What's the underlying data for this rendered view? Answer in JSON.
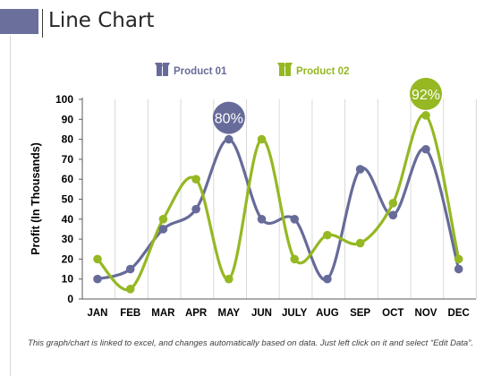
{
  "page": {
    "title": "Line Chart",
    "footnote": "This graph/chart is linked to excel, and changes automatically based on data. Just left click on it and select “Edit Data”."
  },
  "colors": {
    "title_bar": "#6b6f9c",
    "product_01": "#676b99",
    "product_02": "#95b823",
    "grid": "#d9d9d9",
    "axis": "#595959"
  },
  "chart_data": {
    "type": "line",
    "smooth": true,
    "categories": [
      "JAN",
      "FEB",
      "MAR",
      "APR",
      "MAY",
      "JUN",
      "JULY",
      "AUG",
      "SEP",
      "OCT",
      "NOV",
      "DEC"
    ],
    "series": [
      {
        "name": "Product 01",
        "icon": "box-icon",
        "values": [
          10,
          15,
          35,
          45,
          80,
          40,
          40,
          10,
          65,
          42,
          75,
          15
        ]
      },
      {
        "name": "Product 02",
        "icon": "box-icon",
        "values": [
          20,
          5,
          40,
          60,
          10,
          80,
          20,
          32,
          28,
          48,
          92,
          20
        ]
      }
    ],
    "callouts": [
      {
        "series": 0,
        "index": 4,
        "text": "80%"
      },
      {
        "series": 1,
        "index": 10,
        "text": "92%"
      }
    ],
    "ylabel": "Profit (In Thousands)",
    "xlabel": "",
    "ylim": [
      0,
      100
    ],
    "yticks": [
      0,
      10,
      20,
      30,
      40,
      50,
      60,
      70,
      80,
      90,
      100
    ],
    "grid": "vertical",
    "legend": "top"
  }
}
